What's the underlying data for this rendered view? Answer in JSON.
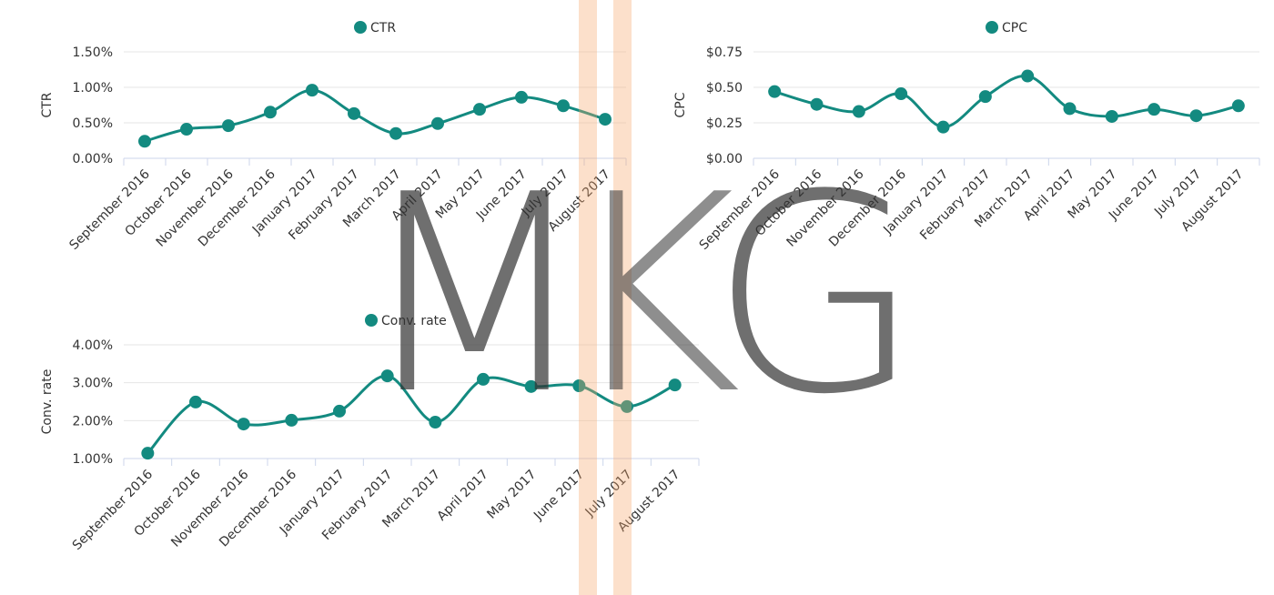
{
  "chart_data": [
    {
      "type": "line",
      "ylabel": "CTR",
      "categories": [
        "September 2016",
        "October 2016",
        "November 2016",
        "December 2016",
        "January 2017",
        "February 2017",
        "March 2017",
        "April 2017",
        "May 2017",
        "June 2017",
        "July 2017",
        "August 2017"
      ],
      "series": [
        {
          "name": "CTR",
          "color": "#138a80",
          "values": [
            0.24,
            0.41,
            0.46,
            0.65,
            0.96,
            0.63,
            0.35,
            0.49,
            0.69,
            0.86,
            0.74,
            0.55
          ]
        }
      ],
      "ylim": [
        0,
        1.5
      ],
      "yticks": [
        {
          "value": 0,
          "label": "0.00%"
        },
        {
          "value": 0.5,
          "label": "0.50%"
        },
        {
          "value": 1,
          "label": "1.00%"
        },
        {
          "value": 1.5,
          "label": "1.50%"
        }
      ],
      "grid": true,
      "legend": "top"
    },
    {
      "type": "line",
      "ylabel": "CPC",
      "categories": [
        "September 2016",
        "October 2016",
        "November 2016",
        "December 2016",
        "January 2017",
        "February 2017",
        "March 2017",
        "April 2017",
        "May 2017",
        "June 2017",
        "July 2017",
        "August 2017"
      ],
      "series": [
        {
          "name": "CPC",
          "color": "#138a80",
          "values": [
            0.47,
            0.38,
            0.33,
            0.455,
            0.22,
            0.435,
            0.58,
            0.35,
            0.295,
            0.345,
            0.3,
            0.37
          ]
        }
      ],
      "ylim": [
        0,
        0.75
      ],
      "yticks": [
        {
          "value": 0,
          "label": "$0.00"
        },
        {
          "value": 0.25,
          "label": "$0.25"
        },
        {
          "value": 0.5,
          "label": "$0.50"
        },
        {
          "value": 0.75,
          "label": "$0.75"
        }
      ],
      "grid": true,
      "legend": "top"
    },
    {
      "type": "line",
      "ylabel": "Conv. rate",
      "categories": [
        "September 2016",
        "October 2016",
        "November 2016",
        "December 2016",
        "January 2017",
        "February 2017",
        "March 2017",
        "April 2017",
        "May 2017",
        "June 2017",
        "July 2017",
        "August 2017"
      ],
      "series": [
        {
          "name": "Conv. rate",
          "color": "#138a80",
          "values": [
            1.14,
            2.49,
            1.91,
            2.01,
            2.25,
            3.18,
            1.96,
            3.09,
            2.9,
            2.92,
            2.37,
            2.94
          ]
        }
      ],
      "ylim": [
        1,
        4
      ],
      "yticks": [
        {
          "value": 1,
          "label": "1.00%"
        },
        {
          "value": 2,
          "label": "2.00%"
        },
        {
          "value": 3,
          "label": "3.00%"
        },
        {
          "value": 4,
          "label": "4.00%"
        }
      ],
      "grid": true,
      "legend": "top"
    }
  ],
  "watermark": [
    "M",
    "K",
    "G"
  ]
}
